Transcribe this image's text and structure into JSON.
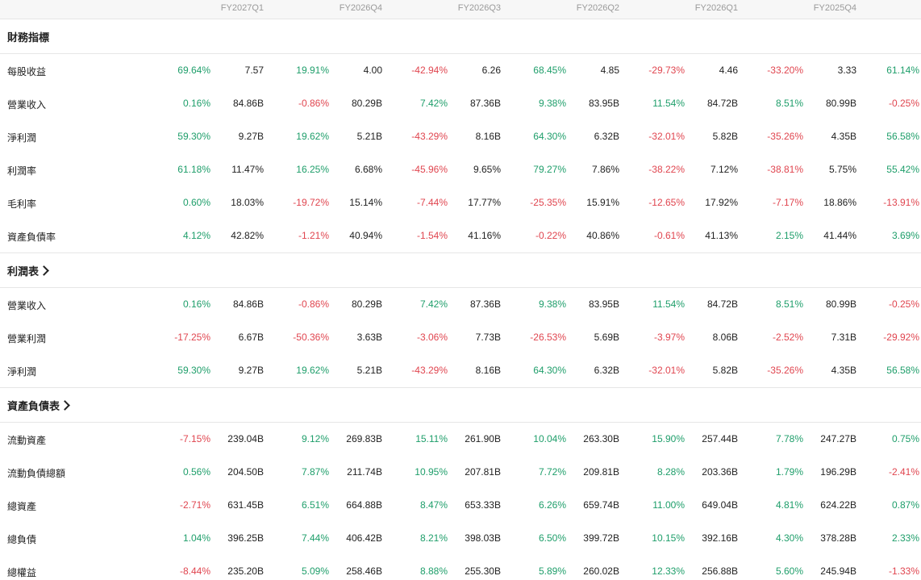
{
  "periods": [
    "FY2027Q1",
    "FY2026Q4",
    "FY2026Q3",
    "FY2026Q2",
    "FY2026Q1",
    "FY2025Q4"
  ],
  "sections": [
    {
      "title": "財務指標",
      "link": false,
      "rows": [
        {
          "label": "每股收益",
          "cells": [
            [
              "69.64%",
              "7.57"
            ],
            [
              "19.91%",
              "4.00"
            ],
            [
              "-42.94%",
              "6.26"
            ],
            [
              "68.45%",
              "4.85"
            ],
            [
              "-29.73%",
              "4.46"
            ],
            [
              "-33.20%",
              "3.33"
            ],
            [
              "61.14%"
            ]
          ]
        },
        {
          "label": "營業收入",
          "cells": [
            [
              "0.16%",
              "84.86B"
            ],
            [
              "-0.86%",
              "80.29B"
            ],
            [
              "7.42%",
              "87.36B"
            ],
            [
              "9.38%",
              "83.95B"
            ],
            [
              "11.54%",
              "84.72B"
            ],
            [
              "8.51%",
              "80.99B"
            ],
            [
              "-0.25%"
            ]
          ]
        },
        {
          "label": "淨利潤",
          "cells": [
            [
              "59.30%",
              "9.27B"
            ],
            [
              "19.62%",
              "5.21B"
            ],
            [
              "-43.29%",
              "8.16B"
            ],
            [
              "64.30%",
              "6.32B"
            ],
            [
              "-32.01%",
              "5.82B"
            ],
            [
              "-35.26%",
              "4.35B"
            ],
            [
              "56.58%"
            ]
          ]
        },
        {
          "label": "利潤率",
          "cells": [
            [
              "61.18%",
              "11.47%"
            ],
            [
              "16.25%",
              "6.68%"
            ],
            [
              "-45.96%",
              "9.65%"
            ],
            [
              "79.27%",
              "7.86%"
            ],
            [
              "-38.22%",
              "7.12%"
            ],
            [
              "-38.81%",
              "5.75%"
            ],
            [
              "55.42%"
            ]
          ]
        },
        {
          "label": "毛利率",
          "cells": [
            [
              "0.60%",
              "18.03%"
            ],
            [
              "-19.72%",
              "15.14%"
            ],
            [
              "-7.44%",
              "17.77%"
            ],
            [
              "-25.35%",
              "15.91%"
            ],
            [
              "-12.65%",
              "17.92%"
            ],
            [
              "-7.17%",
              "18.86%"
            ],
            [
              "-13.91%"
            ]
          ]
        },
        {
          "label": "資產負債率",
          "cells": [
            [
              "4.12%",
              "42.82%"
            ],
            [
              "-1.21%",
              "40.94%"
            ],
            [
              "-1.54%",
              "41.16%"
            ],
            [
              "-0.22%",
              "40.86%"
            ],
            [
              "-0.61%",
              "41.13%"
            ],
            [
              "2.15%",
              "41.44%"
            ],
            [
              "3.69%"
            ]
          ]
        }
      ]
    },
    {
      "title": "利潤表",
      "link": true,
      "rows": [
        {
          "label": "營業收入",
          "cells": [
            [
              "0.16%",
              "84.86B"
            ],
            [
              "-0.86%",
              "80.29B"
            ],
            [
              "7.42%",
              "87.36B"
            ],
            [
              "9.38%",
              "83.95B"
            ],
            [
              "11.54%",
              "84.72B"
            ],
            [
              "8.51%",
              "80.99B"
            ],
            [
              "-0.25%"
            ]
          ]
        },
        {
          "label": "營業利潤",
          "cells": [
            [
              "-17.25%",
              "6.67B"
            ],
            [
              "-50.36%",
              "3.63B"
            ],
            [
              "-3.06%",
              "7.73B"
            ],
            [
              "-26.53%",
              "5.69B"
            ],
            [
              "-3.97%",
              "8.06B"
            ],
            [
              "-2.52%",
              "7.31B"
            ],
            [
              "-29.92%"
            ]
          ]
        },
        {
          "label": "淨利潤",
          "cells": [
            [
              "59.30%",
              "9.27B"
            ],
            [
              "19.62%",
              "5.21B"
            ],
            [
              "-43.29%",
              "8.16B"
            ],
            [
              "64.30%",
              "6.32B"
            ],
            [
              "-32.01%",
              "5.82B"
            ],
            [
              "-35.26%",
              "4.35B"
            ],
            [
              "56.58%"
            ]
          ]
        }
      ]
    },
    {
      "title": "資產負債表",
      "link": true,
      "rows": [
        {
          "label": "流動資產",
          "cells": [
            [
              "-7.15%",
              "239.04B"
            ],
            [
              "9.12%",
              "269.83B"
            ],
            [
              "15.11%",
              "261.90B"
            ],
            [
              "10.04%",
              "263.30B"
            ],
            [
              "15.90%",
              "257.44B"
            ],
            [
              "7.78%",
              "247.27B"
            ],
            [
              "0.75%"
            ]
          ]
        },
        {
          "label": "流動負債總額",
          "cells": [
            [
              "0.56%",
              "204.50B"
            ],
            [
              "7.87%",
              "211.74B"
            ],
            [
              "10.95%",
              "207.81B"
            ],
            [
              "7.72%",
              "209.81B"
            ],
            [
              "8.28%",
              "203.36B"
            ],
            [
              "1.79%",
              "196.29B"
            ],
            [
              "-2.41%"
            ]
          ]
        },
        {
          "label": "總資產",
          "cells": [
            [
              "-2.71%",
              "631.45B"
            ],
            [
              "6.51%",
              "664.88B"
            ],
            [
              "8.47%",
              "653.33B"
            ],
            [
              "6.26%",
              "659.74B"
            ],
            [
              "11.00%",
              "649.04B"
            ],
            [
              "4.81%",
              "624.22B"
            ],
            [
              "0.87%"
            ]
          ]
        },
        {
          "label": "總負債",
          "cells": [
            [
              "1.04%",
              "396.25B"
            ],
            [
              "7.44%",
              "406.42B"
            ],
            [
              "8.21%",
              "398.03B"
            ],
            [
              "6.50%",
              "399.72B"
            ],
            [
              "10.15%",
              "392.16B"
            ],
            [
              "4.30%",
              "378.28B"
            ],
            [
              "2.33%"
            ]
          ]
        },
        {
          "label": "總權益",
          "cells": [
            [
              "-8.44%",
              "235.20B"
            ],
            [
              "5.09%",
              "258.46B"
            ],
            [
              "8.88%",
              "255.30B"
            ],
            [
              "5.89%",
              "260.02B"
            ],
            [
              "12.33%",
              "256.88B"
            ],
            [
              "5.60%",
              "245.94B"
            ],
            [
              "-1.33%"
            ]
          ]
        }
      ]
    }
  ],
  "colors": {
    "positive": "#1e9e6a",
    "negative": "#e0454f"
  }
}
